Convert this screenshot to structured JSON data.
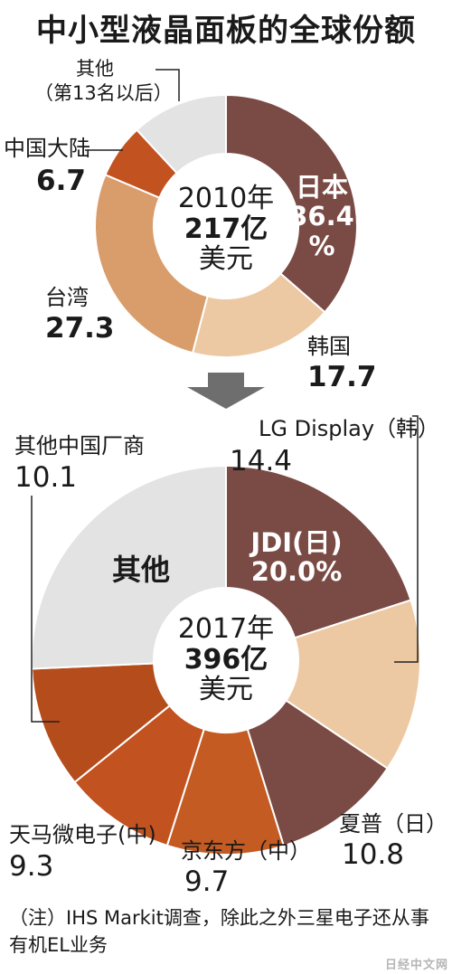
{
  "title": "中小型液晶面板的全球份额",
  "colors": {
    "japan": "#7a4a44",
    "korea": "#edc9a3",
    "taiwan": "#d99d6c",
    "china": "#c2521f",
    "other": "#e3e3e3",
    "china_dark": "#b44c1b",
    "china_mid": "#c35b22",
    "arrow": "#6e6e6e"
  },
  "chart_data": [
    {
      "type": "pie",
      "center_label": {
        "year": "2010年",
        "amount": "217亿",
        "unit": "美元"
      },
      "slices": [
        {
          "name": "日本",
          "value": 36.4,
          "label_name": "日本",
          "label_value": "36.4",
          "label_unit": "%"
        },
        {
          "name": "韩国",
          "value": 17.7,
          "label_name": "韩国",
          "label_value": "17.7"
        },
        {
          "name": "台湾",
          "value": 27.3,
          "label_name": "台湾",
          "label_value": "27.3"
        },
        {
          "name": "中国大陆",
          "value": 6.7,
          "label_name": "中国大陆",
          "label_value": "6.7"
        },
        {
          "name": "其他",
          "value": 11.9,
          "label_name": "其他",
          "label_sub": "（第13名以后）"
        }
      ]
    },
    {
      "type": "pie",
      "center_label": {
        "year": "2017年",
        "amount": "396亿",
        "unit": "美元"
      },
      "slices": [
        {
          "name": "JDI(日)",
          "value": 20.0,
          "label_name": "JDI(日)",
          "label_value": "20.0%"
        },
        {
          "name": "LG Display（韩）",
          "value": 14.4,
          "label_name": "LG Display（韩）",
          "label_value": "14.4"
        },
        {
          "name": "夏普（日）",
          "value": 10.8,
          "label_name": "夏普（日）",
          "label_value": "10.8"
        },
        {
          "name": "京东方（中）",
          "value": 9.7,
          "label_name": "京东方（中）",
          "label_value": "9.7"
        },
        {
          "name": "天马微电子(中)",
          "value": 9.3,
          "label_name": "天马微电子(中)",
          "label_value": "9.3"
        },
        {
          "name": "其他中国厂商",
          "value": 10.1,
          "label_name": "其他中国厂商",
          "label_value": "10.1"
        },
        {
          "name": "其他",
          "value": 25.7,
          "label_name": "其他"
        }
      ]
    }
  ],
  "note": "（注）IHS Markit调查，除此之外三星电子还从事有机EL业务",
  "watermark": "日经中文网"
}
